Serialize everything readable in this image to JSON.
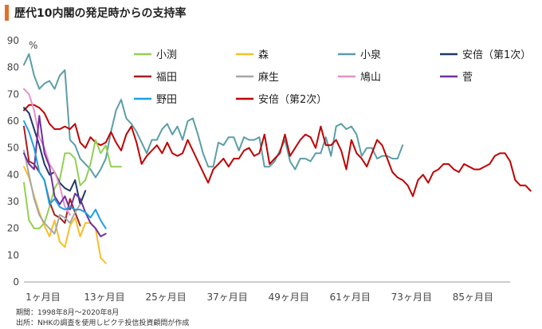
{
  "title": "歴代10内閣の発足時からの支持率",
  "notes": {
    "period": "期間：1998年8月～2020年8月",
    "source": "出所：NHKの調査を使用しピクテ投信投資顧問が作成"
  },
  "chart_data": {
    "type": "line",
    "title": "歴代10内閣の発足時からの支持率",
    "xlabel": "",
    "ylabel": "%",
    "ylim": [
      0,
      90
    ],
    "xlim": [
      1,
      96
    ],
    "yticks": [
      0,
      10,
      20,
      30,
      40,
      50,
      60,
      70,
      80,
      90
    ],
    "xticks": [
      1,
      13,
      25,
      37,
      49,
      61,
      73,
      85
    ],
    "xtick_labels": [
      "1ヶ月目",
      "13ヶ月目",
      "25ヶ月目",
      "37ヶ月目",
      "49ヶ月目",
      "61ヶ月目",
      "73ヶ月目",
      "85ヶ月目"
    ],
    "grid": false,
    "legend_position": "top",
    "series": [
      {
        "name": "小渕",
        "color": "#92d050",
        "x_start": 1,
        "values": [
          37,
          23,
          20,
          20,
          22,
          28,
          35,
          38,
          48,
          48,
          46,
          36,
          38,
          44,
          53,
          48,
          51,
          43,
          43,
          43
        ]
      },
      {
        "name": "森",
        "color": "#f6bf26",
        "x_start": 1,
        "values": [
          43,
          39,
          32,
          26,
          21,
          17,
          23,
          15,
          13,
          21,
          24,
          17,
          22,
          22,
          20,
          9,
          7
        ]
      },
      {
        "name": "小泉",
        "color": "#5b9ea6",
        "x_start": 1,
        "values": [
          81,
          85,
          77,
          72,
          74,
          75,
          72,
          77,
          79,
          53,
          51,
          46,
          44,
          42,
          39,
          42,
          46,
          56,
          64,
          68,
          61,
          59,
          56,
          52,
          48,
          53,
          53,
          57,
          59,
          55,
          58,
          53,
          60,
          61,
          55,
          48,
          43,
          43,
          52,
          51,
          54,
          54,
          49,
          54,
          53,
          53,
          54,
          43,
          43,
          45,
          49,
          53,
          45,
          42,
          46,
          46,
          45,
          48,
          48,
          54,
          47,
          58,
          59,
          57,
          58,
          55,
          47,
          50,
          50,
          46,
          47,
          47,
          46,
          46,
          51
        ]
      },
      {
        "name": "安倍（第1次）",
        "color": "#1f3864",
        "x_start": 1,
        "values": [
          65,
          63,
          57,
          51,
          44,
          40,
          41,
          37,
          35,
          34,
          38,
          29,
          34
        ]
      },
      {
        "name": "福田",
        "color": "#a51e22",
        "x_start": 1,
        "values": [
          58,
          45,
          44,
          41,
          38,
          30,
          25,
          24,
          22,
          31,
          26,
          21
        ]
      },
      {
        "name": "麻生",
        "color": "#a6a6a6",
        "x_start": 1,
        "values": [
          49,
          40,
          31,
          25,
          22,
          20,
          18,
          25,
          24,
          22,
          26,
          29
        ]
      },
      {
        "name": "鳩山",
        "color": "#e592c8",
        "x_start": 1,
        "values": [
          72,
          70,
          64,
          54,
          50,
          44,
          41,
          36,
          28,
          25
        ]
      },
      {
        "name": "菅",
        "color": "#7030a0",
        "x_start": 1,
        "values": [
          48,
          44,
          42,
          62,
          48,
          43,
          32,
          29,
          32,
          27,
          33,
          31,
          26,
          22,
          20,
          17,
          18
        ]
      },
      {
        "name": "野田",
        "color": "#1ba1e2",
        "x_start": 1,
        "values": [
          60,
          56,
          50,
          41,
          38,
          29,
          31,
          28,
          27,
          28,
          27,
          27,
          26,
          24,
          27,
          23,
          20
        ]
      },
      {
        "name": "安倍（第2次）",
        "color": "#c00000",
        "x_start": 1,
        "values": [
          64,
          66,
          66,
          65,
          63,
          59,
          57,
          57,
          58,
          57,
          59,
          52,
          50,
          54,
          52,
          51,
          52,
          56,
          52,
          49,
          55,
          58,
          52,
          44,
          47,
          49,
          51,
          48,
          52,
          48,
          47,
          48,
          53,
          49,
          45,
          41,
          37,
          42,
          44,
          46,
          43,
          46,
          46,
          49,
          50,
          47,
          48,
          55,
          44,
          46,
          48,
          55,
          47,
          50,
          53,
          55,
          54,
          50,
          58,
          51,
          51,
          53,
          49,
          42,
          53,
          48,
          46,
          43,
          48,
          53,
          51,
          46,
          41,
          39,
          38,
          36,
          32,
          38,
          40,
          37,
          41,
          42,
          44,
          44,
          42,
          41,
          44,
          43,
          42,
          42,
          43,
          44,
          47,
          48,
          48,
          45,
          38,
          36,
          36,
          34
        ]
      }
    ]
  }
}
